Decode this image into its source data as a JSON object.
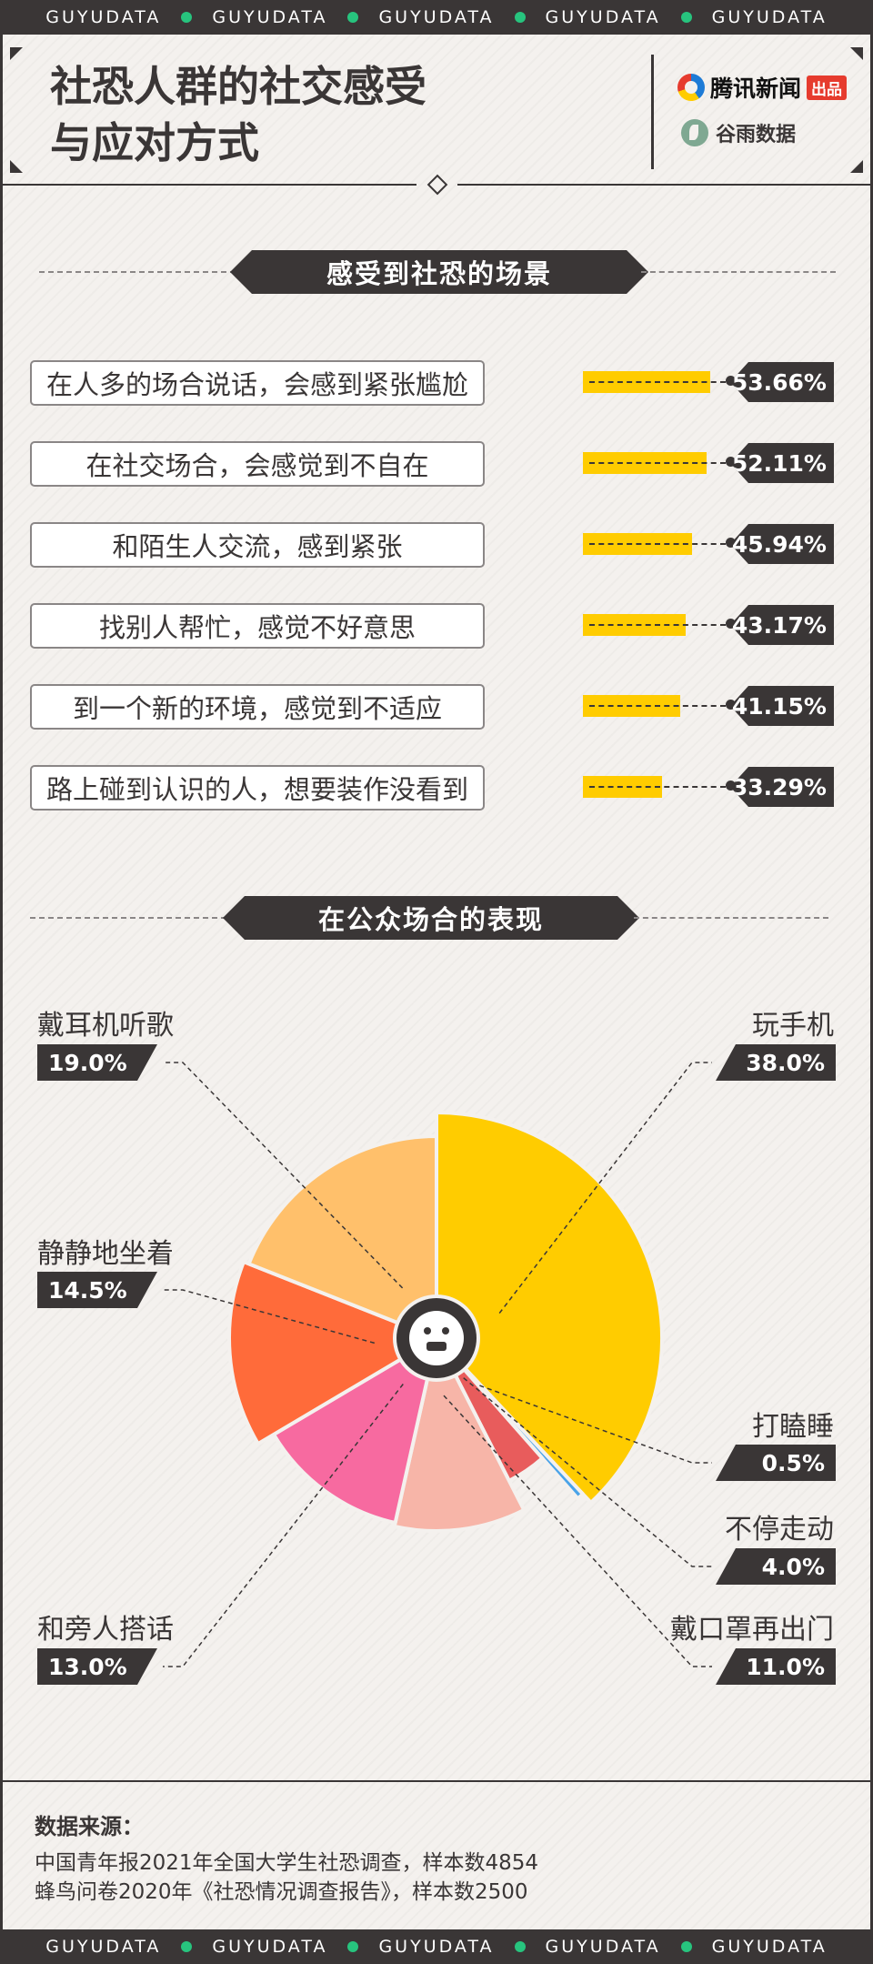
{
  "brand_strip": {
    "word": "GUYUDATA",
    "count": 5,
    "dot_color": "#27c47e"
  },
  "header": {
    "title_line1": "社恐人群的社交感受",
    "title_line2": "与应对方式",
    "logo1_text": "腾讯新闻",
    "logo1_badge": "出品",
    "logo2_text": "谷雨数据"
  },
  "section1": {
    "title": "感受到社恐的场景"
  },
  "section2": {
    "title": "在公众场合的表现"
  },
  "source": {
    "title": "数据来源：",
    "lines": [
      "中国青年报2021年全国大学生社恐调查，样本数4854",
      "蜂鸟问卷2020年《社恐情况调查报告》，样本数2500"
    ]
  },
  "chart_data": [
    {
      "type": "bar",
      "orientation": "horizontal",
      "title": "感受到社恐的场景",
      "unit": "%",
      "bar_color": "#ffcc00",
      "categories": [
        "在人多的场合说话，会感到紧张尴尬",
        "在社交场合，会感觉到不自在",
        "和陌生人交流，感到紧张",
        "找别人帮忙，感觉不好意思",
        "到一个新的环境，感觉到不适应",
        "路上碰到认识的人，想要装作没看到"
      ],
      "values": [
        53.66,
        52.11,
        45.94,
        43.17,
        41.15,
        33.29
      ],
      "value_labels": [
        "53.66%",
        "52.11%",
        "45.94%",
        "43.17%",
        "41.15%",
        "33.29%"
      ]
    },
    {
      "type": "pie",
      "title": "在公众场合的表现",
      "unit": "%",
      "slices": [
        {
          "name": "玩手机",
          "value": 38.0,
          "label": "38.0%",
          "color": "#ffcc00"
        },
        {
          "name": "打瞌睡",
          "value": 0.5,
          "label": "0.5%",
          "color": "#4aa3e8"
        },
        {
          "name": "不停走动",
          "value": 4.0,
          "label": "4.0%",
          "color": "#e85c5c"
        },
        {
          "name": "戴口罩再出门",
          "value": 11.0,
          "label": "11.0%",
          "color": "#f7b5a8"
        },
        {
          "name": "和旁人搭话",
          "value": 13.0,
          "label": "13.0%",
          "color": "#f76aa0"
        },
        {
          "name": "静静地坐着",
          "value": 14.5,
          "label": "14.5%",
          "color": "#ff6b3a"
        },
        {
          "name": "戴耳机听歌",
          "value": 19.0,
          "label": "19.0%",
          "color": "#ffc06b"
        }
      ]
    }
  ]
}
